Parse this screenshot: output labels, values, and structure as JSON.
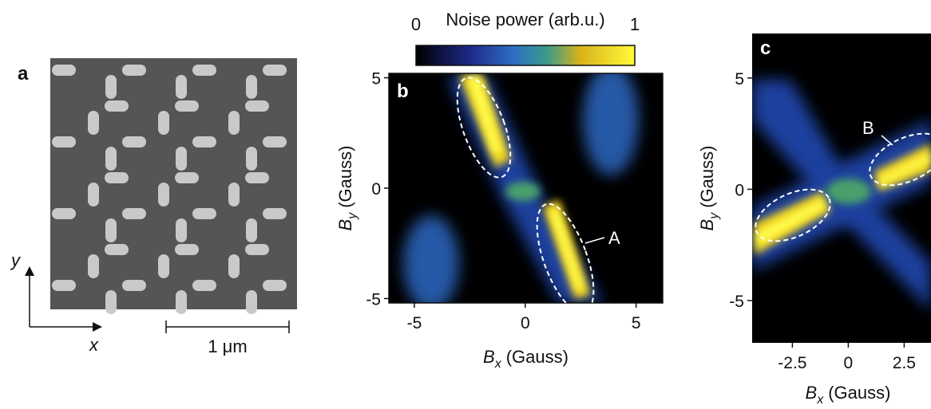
{
  "panel_a": {
    "label": "a",
    "y_axis": "y",
    "x_axis": "x",
    "scale_bar": "1 μm"
  },
  "colorbar": {
    "title": "Noise power (arb.u.)",
    "min_label": "0",
    "max_label": "1"
  },
  "panel_b": {
    "label": "b",
    "annotation": "A",
    "xlabel": {
      "symbol": "B",
      "subscript": "x",
      "unit": "(Gauss)"
    },
    "ylabel": {
      "symbol": "B",
      "subscript": "y",
      "unit": "(Gauss)"
    },
    "xlim": [
      -6.15,
      6.2
    ],
    "ylim": [
      -5.2,
      5.2
    ],
    "xticks": [
      -5,
      0,
      5
    ],
    "yticks": [
      -5,
      0,
      5
    ]
  },
  "panel_c": {
    "label": "c",
    "annotation": "B",
    "xlabel": {
      "symbol": "B",
      "subscript": "x",
      "unit": "(Gauss)"
    },
    "ylabel": {
      "symbol": "B",
      "subscript": "y",
      "unit": "(Gauss)"
    },
    "xlim": [
      -4.3,
      3.7
    ],
    "ylim": [
      -6.9,
      7.0
    ],
    "xticks": [
      -2.5,
      0,
      2.5
    ],
    "yticks": [
      -5,
      0,
      5
    ]
  }
}
